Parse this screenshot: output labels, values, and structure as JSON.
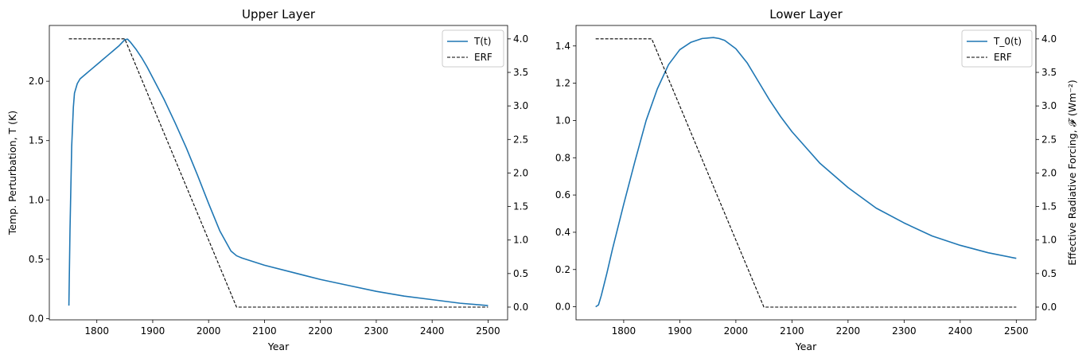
{
  "chart_data": [
    {
      "type": "line",
      "title": "Upper Layer",
      "xlabel": "Year",
      "ylabel": "Temp. Perturbation, T (K)",
      "ylabel_right": "",
      "xlim": [
        1715,
        2535
      ],
      "ylim": [
        -0.01,
        2.47
      ],
      "ylim_right": [
        -0.19,
        4.2
      ],
      "xticks": [
        1800,
        1900,
        2000,
        2100,
        2200,
        2300,
        2400,
        2500
      ],
      "yticks": [
        0.0,
        0.5,
        1.0,
        1.5,
        2.0
      ],
      "yticks_right": [
        0.0,
        0.5,
        1.0,
        1.5,
        2.0,
        2.5,
        3.0,
        3.5,
        4.0
      ],
      "legend_position": "top-right",
      "series": [
        {
          "name": "T(t)",
          "axis": "left",
          "color": "#1f77b4",
          "style": "solid",
          "x": [
            1750,
            1752,
            1755,
            1758,
            1760,
            1765,
            1770,
            1780,
            1790,
            1800,
            1810,
            1820,
            1830,
            1840,
            1850,
            1855,
            1860,
            1870,
            1880,
            1890,
            1900,
            1920,
            1940,
            1960,
            1980,
            2000,
            2020,
            2040,
            2050,
            2055,
            2060,
            2080,
            2100,
            2150,
            2200,
            2250,
            2300,
            2350,
            2400,
            2450,
            2500
          ],
          "y": [
            0.11,
            0.75,
            1.45,
            1.78,
            1.9,
            1.98,
            2.02,
            2.06,
            2.1,
            2.14,
            2.18,
            2.22,
            2.26,
            2.3,
            2.35,
            2.355,
            2.33,
            2.27,
            2.2,
            2.12,
            2.03,
            1.85,
            1.65,
            1.44,
            1.21,
            0.97,
            0.74,
            0.57,
            0.53,
            0.52,
            0.51,
            0.48,
            0.45,
            0.39,
            0.33,
            0.28,
            0.23,
            0.19,
            0.16,
            0.13,
            0.11
          ]
        },
        {
          "name": "ERF",
          "axis": "right",
          "color": "#000000",
          "style": "dashed",
          "x": [
            1750,
            1850,
            2050,
            2500
          ],
          "y": [
            4.0,
            4.0,
            0.0,
            0.0
          ]
        }
      ]
    },
    {
      "type": "line",
      "title": "Lower Layer",
      "xlabel": "Year",
      "ylabel": "",
      "ylabel_right": "Effective Radiative Forcing, 𝓕 (Wm⁻²)",
      "xlim": [
        1715,
        2535
      ],
      "ylim": [
        -0.07,
        1.51
      ],
      "ylim_right": [
        -0.19,
        4.2
      ],
      "xticks": [
        1800,
        1900,
        2000,
        2100,
        2200,
        2300,
        2400,
        2500
      ],
      "yticks": [
        0.0,
        0.2,
        0.4,
        0.6,
        0.8,
        1.0,
        1.2,
        1.4
      ],
      "yticks_right": [
        0.0,
        0.5,
        1.0,
        1.5,
        2.0,
        2.5,
        3.0,
        3.5,
        4.0
      ],
      "legend_position": "top-right",
      "series": [
        {
          "name": "T_0(t)",
          "axis": "left",
          "color": "#1f77b4",
          "style": "solid",
          "x": [
            1750,
            1755,
            1760,
            1770,
            1780,
            1790,
            1800,
            1820,
            1840,
            1860,
            1880,
            1900,
            1920,
            1940,
            1960,
            1970,
            1980,
            2000,
            2020,
            2040,
            2060,
            2080,
            2100,
            2150,
            2200,
            2250,
            2300,
            2350,
            2400,
            2450,
            2500
          ],
          "y": [
            0.0,
            0.01,
            0.06,
            0.18,
            0.31,
            0.43,
            0.55,
            0.78,
            1.0,
            1.17,
            1.3,
            1.38,
            1.42,
            1.44,
            1.445,
            1.44,
            1.43,
            1.385,
            1.31,
            1.21,
            1.11,
            1.02,
            0.94,
            0.77,
            0.64,
            0.53,
            0.45,
            0.38,
            0.33,
            0.29,
            0.26
          ]
        },
        {
          "name": "ERF",
          "axis": "right",
          "color": "#000000",
          "style": "dashed",
          "x": [
            1750,
            1850,
            2050,
            2500
          ],
          "y": [
            4.0,
            4.0,
            0.0,
            0.0
          ]
        }
      ]
    }
  ]
}
